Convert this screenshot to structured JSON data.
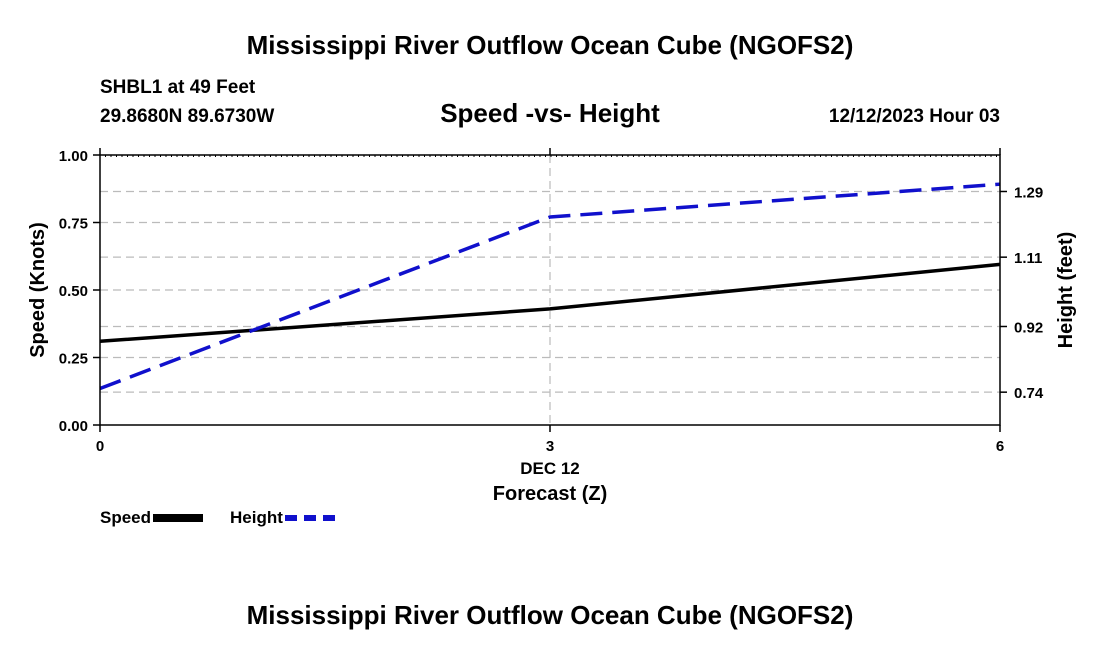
{
  "header": {
    "title": "Mississippi River Outflow Ocean Cube (NGOFS2)",
    "station": "SHBL1 at 49 Feet",
    "coords": "29.8680N  89.6730W",
    "subtitle": "Speed -vs- Height",
    "datetime": "12/12/2023 Hour 03"
  },
  "footer": {
    "title": "Mississippi River Outflow Ocean Cube (NGOFS2)"
  },
  "colors": {
    "speed": "#000000",
    "height": "#1010cc",
    "grid": "#bbbbbb"
  },
  "legend": {
    "speed_label": "Speed",
    "height_label": "Height"
  },
  "chart_data": {
    "type": "line",
    "title": "Speed -vs- Height",
    "xlabel": "Forecast (Z)",
    "x_date_label": "DEC 12",
    "ylabel": "Speed (Knots)",
    "y2label": "Height (feet)",
    "x": [
      0,
      3,
      6
    ],
    "xlim": [
      0,
      6
    ],
    "xticks": [
      "0",
      "3",
      "6"
    ],
    "ylim": [
      0,
      1
    ],
    "yticks": [
      "0.00",
      "0.25",
      "0.50",
      "0.75",
      "1.00"
    ],
    "y2lim": [
      0.65,
      1.39
    ],
    "y2ticks": [
      "0.74",
      "0.92",
      "1.11",
      "1.29"
    ],
    "grid": true,
    "series": [
      {
        "name": "Speed",
        "axis": "left",
        "style": "solid",
        "values": [
          0.31,
          0.43,
          0.595
        ]
      },
      {
        "name": "Height",
        "axis": "right",
        "style": "dashed",
        "values": [
          0.75,
          1.22,
          1.31
        ]
      }
    ]
  }
}
